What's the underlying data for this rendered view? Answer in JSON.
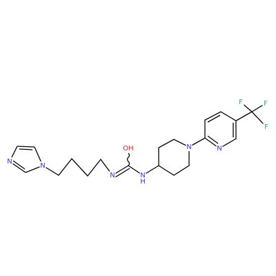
{
  "molecule": {
    "atom_labels": [
      "N",
      "N",
      "N",
      "OH",
      "N",
      "H",
      "N",
      "N",
      "F",
      "F",
      "F"
    ]
  }
}
